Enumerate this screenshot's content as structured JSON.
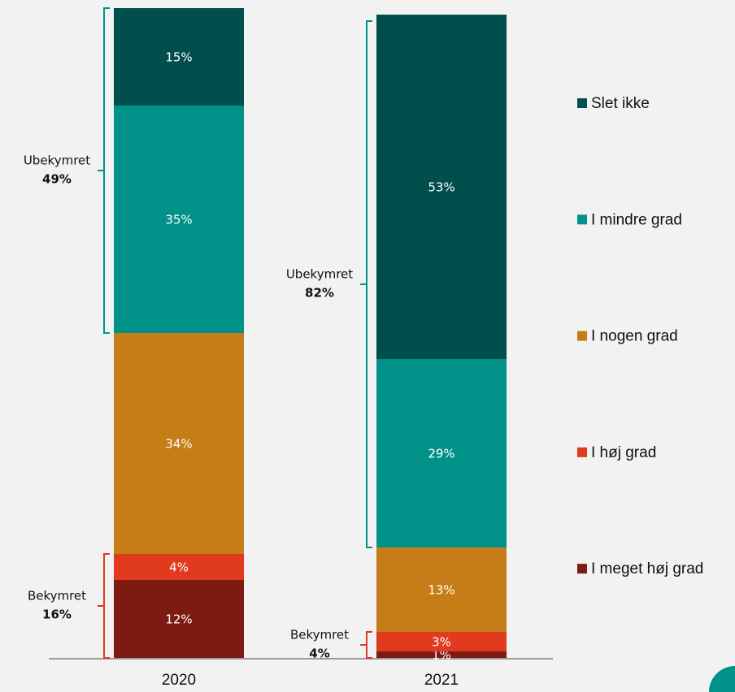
{
  "chart_data": {
    "type": "stacked-bar",
    "categories": [
      "2020",
      "2021"
    ],
    "series": [
      {
        "name": "I meget høj grad",
        "color": "#7d1a12",
        "values": [
          12,
          1
        ],
        "value_labels": [
          "12%",
          "1%"
        ]
      },
      {
        "name": "I høj grad",
        "color": "#e03b1f",
        "values": [
          4,
          3
        ],
        "value_labels": [
          "4%",
          "3%"
        ]
      },
      {
        "name": "I nogen grad",
        "color": "#c77d17",
        "values": [
          34,
          13
        ],
        "value_labels": [
          "34%",
          "13%"
        ]
      },
      {
        "name": "I mindre grad",
        "color": "#009189",
        "values": [
          35,
          29
        ],
        "value_labels": [
          "35%",
          "29%"
        ]
      },
      {
        "name": "Slet ikke",
        "color": "#004f4c",
        "values": [
          15,
          53
        ],
        "value_labels": [
          "15%",
          "53%"
        ]
      }
    ],
    "ylim": [
      0,
      100
    ],
    "annotations": [
      {
        "label": "Ubekymret",
        "value": "49%"
      },
      {
        "label": "Bekymret",
        "value": "16%"
      },
      {
        "label": "Ubekymret",
        "value": "82%"
      },
      {
        "label": "Bekymret",
        "value": "4%"
      }
    ]
  }
}
